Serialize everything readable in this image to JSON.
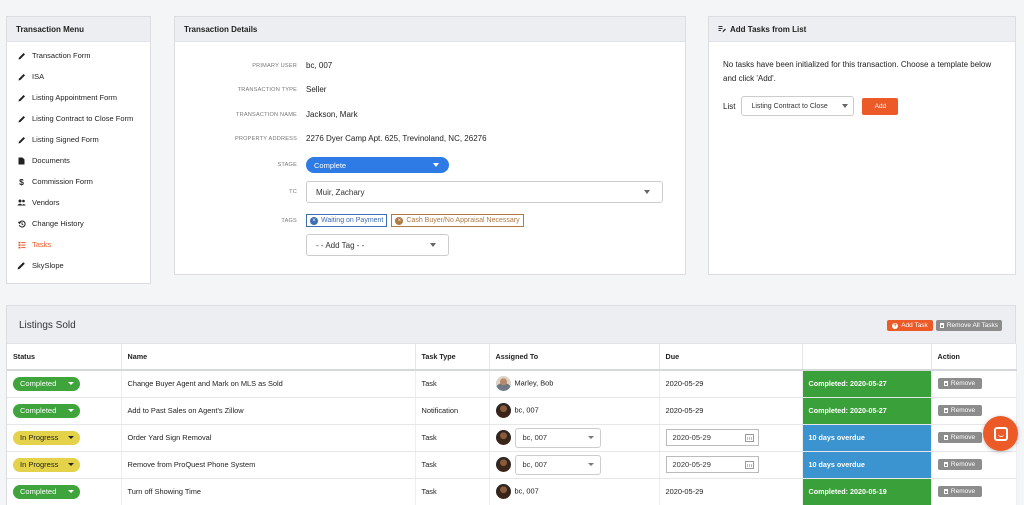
{
  "sidebar": {
    "title": "Transaction Menu",
    "items": [
      {
        "label": "Transaction Form",
        "icon": "pencil-icon"
      },
      {
        "label": "ISA",
        "icon": "pencil-icon"
      },
      {
        "label": "Listing Appointment Form",
        "icon": "pencil-icon"
      },
      {
        "label": "Listing Contract to Close Form",
        "icon": "pencil-icon"
      },
      {
        "label": "Listing Signed Form",
        "icon": "pencil-icon"
      },
      {
        "label": "Documents",
        "icon": "document-icon"
      },
      {
        "label": "Commission Form",
        "icon": "dollar-icon"
      },
      {
        "label": "Vendors",
        "icon": "users-icon"
      },
      {
        "label": "Change History",
        "icon": "history-icon"
      },
      {
        "label": "Tasks",
        "icon": "tasks-icon",
        "active": true
      },
      {
        "label": "SkySlope",
        "icon": "pen-icon"
      }
    ]
  },
  "details": {
    "title": "Transaction Details",
    "primary_user_label": "PRIMARY USER",
    "primary_user": "bc, 007",
    "transaction_type_label": "TRANSACTION TYPE",
    "transaction_type": "Seller",
    "transaction_name_label": "TRANSACTION NAME",
    "transaction_name": "Jackson, Mark",
    "property_address_label": "PROPERTY ADDRESS",
    "property_address": "2276 Dyer Camp Apt. 625, Trevinoland, NC, 26276",
    "stage_label": "STAGE",
    "stage": "Complete",
    "tc_label": "TC",
    "tc": "Muir, Zachary",
    "tags_label": "TAGS",
    "tags": [
      {
        "label": "Waiting on Payment",
        "color": "#3d6db5"
      },
      {
        "label": "Cash Buyer/No Appraisal Necessary",
        "color": "#b07a43"
      }
    ],
    "add_tag": "- - Add Tag - -"
  },
  "add_tasks": {
    "title": "Add Tasks from List",
    "message": "No tasks have been initialized for this transaction. Choose a template below and click 'Add'.",
    "list_label": "List",
    "selected_template": "Listing Contract to Close",
    "add_button": "Add"
  },
  "listings": {
    "title": "Listings Sold",
    "add_task_button": "Add Task",
    "remove_all_button": "Remove All Tasks",
    "columns": [
      "Status",
      "Name",
      "Task Type",
      "Assigned To",
      "Due",
      "",
      "Action"
    ],
    "rows": [
      {
        "status": "Completed",
        "name": "Change Buyer Agent and Mark on MLS as Sold",
        "type": "Task",
        "assigned": "Marley, Bob",
        "assign_select": false,
        "due": "2020-05-29",
        "due_input": false,
        "result": "Completed: 2020-05-27",
        "result_kind": "completed",
        "action": "Remove"
      },
      {
        "status": "Completed",
        "name": "Add to Past Sales on Agent's Zillow",
        "type": "Notification",
        "assigned": "bc, 007",
        "assign_select": false,
        "due": "2020-05-29",
        "due_input": false,
        "result": "Completed: 2020-05-27",
        "result_kind": "completed",
        "action": "Remove"
      },
      {
        "status": "In Progress",
        "name": "Order Yard Sign Removal",
        "type": "Task",
        "assigned": "bc, 007",
        "assign_select": true,
        "due": "2020-05-29",
        "due_input": true,
        "result": "10 days overdue",
        "result_kind": "overdue",
        "action": "Remove"
      },
      {
        "status": "In Progress",
        "name": "Remove from ProQuest Phone System",
        "type": "Task",
        "assigned": "bc, 007",
        "assign_select": true,
        "due": "2020-05-29",
        "due_input": true,
        "result": "10 days overdue",
        "result_kind": "overdue",
        "action": "Remove"
      },
      {
        "status": "Completed",
        "name": "Turn off Showing Time",
        "type": "Task",
        "assigned": "bc, 007",
        "assign_select": false,
        "due": "2020-05-29",
        "due_input": false,
        "result": "Completed: 2020-05-19",
        "result_kind": "completed",
        "action": "Remove"
      }
    ]
  },
  "colors": {
    "accent": "#ec5a27",
    "stage_blue": "#2f7be5",
    "completed_green": "#3aa03a",
    "overdue_blue": "#3b93d0",
    "in_progress_yellow": "#e3d24a"
  },
  "chat_button_icon": "chat-icon"
}
